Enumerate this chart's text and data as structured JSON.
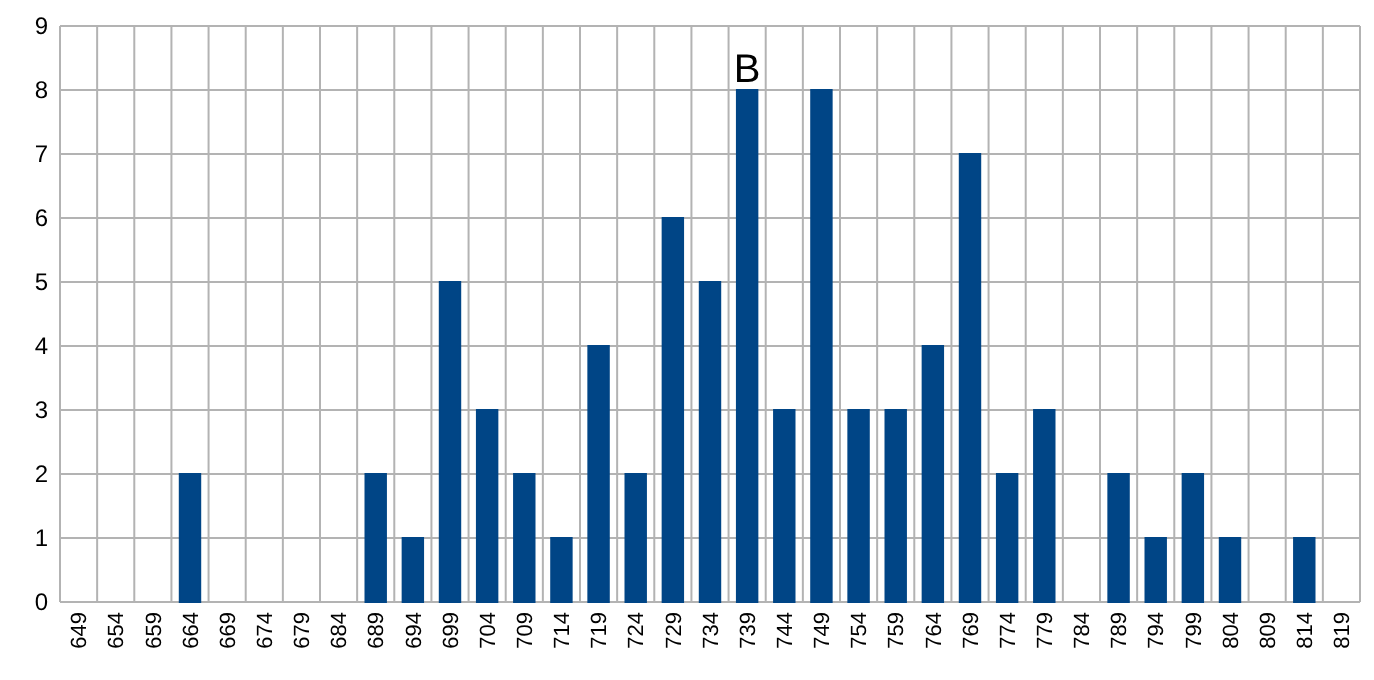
{
  "chart_data": {
    "type": "bar",
    "categories": [
      "649",
      "654",
      "659",
      "664",
      "669",
      "674",
      "679",
      "684",
      "689",
      "694",
      "699",
      "704",
      "709",
      "714",
      "719",
      "724",
      "729",
      "734",
      "739",
      "744",
      "749",
      "754",
      "759",
      "764",
      "769",
      "774",
      "779",
      "784",
      "789",
      "794",
      "799",
      "804",
      "809",
      "814",
      "819"
    ],
    "values": [
      0,
      0,
      0,
      2,
      0,
      0,
      0,
      0,
      2,
      1,
      5,
      3,
      2,
      1,
      4,
      2,
      6,
      5,
      8,
      3,
      8,
      3,
      3,
      4,
      7,
      2,
      3,
      0,
      2,
      1,
      2,
      1,
      0,
      1,
      0
    ],
    "color": "#004586",
    "ylim": [
      0,
      9
    ],
    "yticks": [
      0,
      1,
      2,
      3,
      4,
      5,
      6,
      7,
      8,
      9
    ],
    "grid": true,
    "annotations": [
      {
        "text": "B",
        "x": "739",
        "y": 8
      }
    ]
  }
}
